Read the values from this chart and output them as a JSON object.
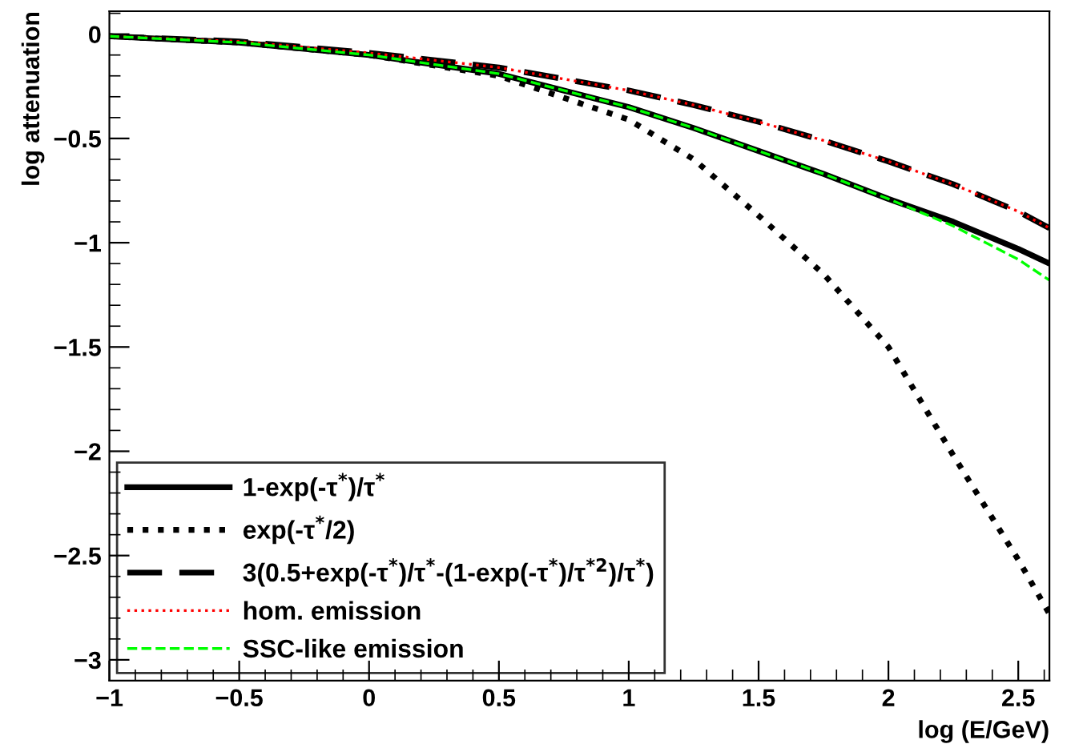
{
  "chart_data": {
    "type": "line",
    "xlabel": "log (E/GeV)",
    "ylabel": "log attenuation",
    "x": [
      -1,
      -0.5,
      0,
      0.5,
      1,
      1.25,
      1.5,
      1.75,
      2,
      2.25,
      2.5,
      2.62
    ],
    "series": [
      {
        "name": "1-exp(-τ$^{*}$)/τ$^{*}$",
        "color": "#000000",
        "line_style": "solid",
        "values": [
          -0.01,
          -0.04,
          -0.1,
          -0.19,
          -0.35,
          -0.45,
          -0.56,
          -0.67,
          -0.79,
          -0.9,
          -1.03,
          -1.1
        ]
      },
      {
        "name": "exp(-τ$^{*}$/2)",
        "color": "#000000",
        "line_style": "dotted",
        "values": [
          -0.01,
          -0.04,
          -0.1,
          -0.2,
          -0.41,
          -0.6,
          -0.87,
          -1.15,
          -1.5,
          -2.02,
          -2.52,
          -2.78
        ]
      },
      {
        "name": "3(0.5+exp(-τ$^{*}$)/τ$^{*}$-(1-exp(-τ$^{*}$)/τ$^{*2}$)/τ$^{*}$)",
        "color": "#000000",
        "line_style": "dashed",
        "values": [
          -0.01,
          -0.035,
          -0.09,
          -0.16,
          -0.27,
          -0.34,
          -0.42,
          -0.51,
          -0.61,
          -0.72,
          -0.85,
          -0.93
        ]
      },
      {
        "name": "hom. emission",
        "color": "#ff0000",
        "line_style": "dotted",
        "values": [
          -0.01,
          -0.035,
          -0.09,
          -0.16,
          -0.27,
          -0.34,
          -0.42,
          -0.51,
          -0.61,
          -0.72,
          -0.85,
          -0.93
        ]
      },
      {
        "name": "SSC-like emission",
        "color": "#00ff00",
        "line_style": "dashed",
        "values": [
          -0.01,
          -0.04,
          -0.1,
          -0.19,
          -0.35,
          -0.45,
          -0.56,
          -0.67,
          -0.79,
          -0.92,
          -1.08,
          -1.18
        ]
      }
    ],
    "xlim": [
      -1,
      2.62
    ],
    "ylim": [
      -3.1,
      0.11
    ],
    "xticks": [
      {
        "value": -1,
        "label": "−1"
      },
      {
        "value": -0.5,
        "label": "−0.5"
      },
      0,
      0.5,
      1,
      1.5,
      2,
      2.5
    ],
    "yticks": [
      0,
      {
        "value": -0.5,
        "label": "−0.5"
      },
      {
        "value": -1,
        "label": "−1"
      },
      {
        "value": -1.5,
        "label": "−1.5"
      },
      {
        "value": -2,
        "label": "−2"
      },
      {
        "value": -2.5,
        "label": "−2.5"
      },
      {
        "value": -3,
        "label": "−3"
      }
    ],
    "grid": false,
    "legend": "bottom left"
  }
}
